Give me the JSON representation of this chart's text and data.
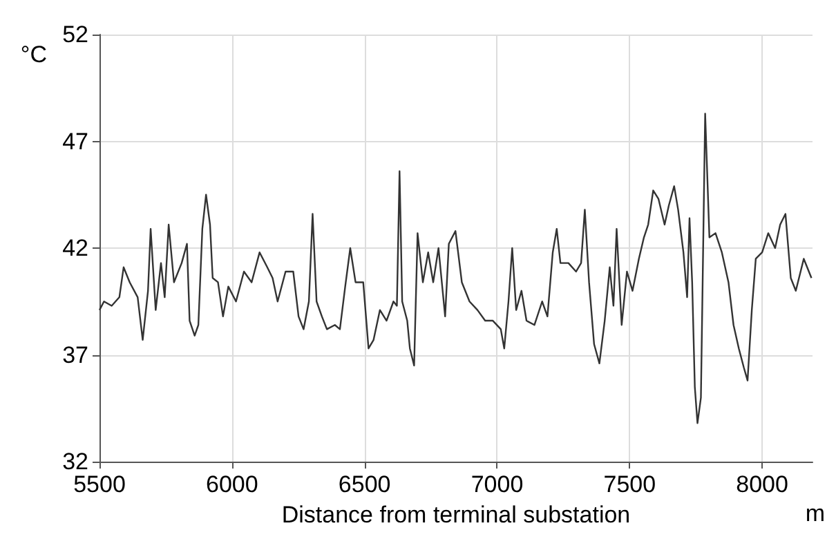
{
  "chart_data": {
    "type": "line",
    "xlabel": "Distance from terminal substation",
    "ylabel": "°C",
    "annotations": [
      "m"
    ],
    "xlim": [
      5500,
      8190
    ],
    "xticks": [
      5500,
      6000,
      6500,
      7000,
      7500,
      8000
    ],
    "ylim": [
      32,
      52
    ],
    "yticks": [
      32,
      37,
      42,
      47,
      52
    ],
    "grid": true,
    "x": [
      5500,
      5517,
      5546,
      5575,
      5591,
      5614,
      5644,
      5663,
      5683,
      5693,
      5712,
      5732,
      5746,
      5761,
      5781,
      5810,
      5830,
      5840,
      5859,
      5873,
      5888,
      5902,
      5917,
      5927,
      5947,
      5966,
      5986,
      6015,
      6045,
      6074,
      6104,
      6133,
      6153,
      6172,
      6202,
      6231,
      6251,
      6270,
      6290,
      6304,
      6319,
      6339,
      6358,
      6388,
      6407,
      6427,
      6446,
      6466,
      6495,
      6515,
      6534,
      6558,
      6583,
      6609,
      6622,
      6632,
      6642,
      6661,
      6671,
      6687,
      6700,
      6720,
      6740,
      6759,
      6779,
      6804,
      6818,
      6843,
      6867,
      6896,
      6926,
      6955,
      6984,
      7014,
      7027,
      7043,
      7057,
      7072,
      7092,
      7111,
      7141,
      7170,
      7190,
      7210,
      7225,
      7239,
      7269,
      7298,
      7317,
      7331,
      7347,
      7366,
      7386,
      7406,
      7425,
      7439,
      7451,
      7470,
      7490,
      7511,
      7535,
      7554,
      7570,
      7589,
      7609,
      7632,
      7648,
      7668,
      7683,
      7703,
      7717,
      7726,
      7736,
      7746,
      7756,
      7769,
      7785,
      7801,
      7824,
      7848,
      7873,
      7892,
      7912,
      7931,
      7945,
      7961,
      7976,
      8000,
      8023,
      8049,
      8068,
      8088,
      8108,
      8127,
      8157,
      8186
    ],
    "series": [
      {
        "color": "#333333",
        "values": [
          39.1,
          39.5,
          39.3,
          39.7,
          41.1,
          40.4,
          39.7,
          37.7,
          40.0,
          42.9,
          39.1,
          41.3,
          39.7,
          43.1,
          40.4,
          41.3,
          42.2,
          38.6,
          37.9,
          38.4,
          42.9,
          44.5,
          43.1,
          40.6,
          40.4,
          38.8,
          40.2,
          39.5,
          40.9,
          40.4,
          41.8,
          41.1,
          40.6,
          39.5,
          40.9,
          40.9,
          38.8,
          38.2,
          39.5,
          43.6,
          39.5,
          38.8,
          38.2,
          38.4,
          38.2,
          40.2,
          42.0,
          40.4,
          40.4,
          37.3,
          37.7,
          39.1,
          38.6,
          39.5,
          39.3,
          45.6,
          39.5,
          38.6,
          37.3,
          36.5,
          42.7,
          40.4,
          41.8,
          40.4,
          42.0,
          38.8,
          42.2,
          42.8,
          40.4,
          39.5,
          39.1,
          38.6,
          38.6,
          38.2,
          37.3,
          39.5,
          42.0,
          39.1,
          40.0,
          38.6,
          38.4,
          39.5,
          38.8,
          41.8,
          42.9,
          41.3,
          41.3,
          40.9,
          41.3,
          43.8,
          40.4,
          37.5,
          36.6,
          38.6,
          41.1,
          39.3,
          42.9,
          38.4,
          40.9,
          40.0,
          41.5,
          42.5,
          43.1,
          44.7,
          44.3,
          43.1,
          44.0,
          44.9,
          43.8,
          41.8,
          39.7,
          43.4,
          40.4,
          35.5,
          33.8,
          35.0,
          48.3,
          42.5,
          42.7,
          41.8,
          40.4,
          38.4,
          37.3,
          36.4,
          35.8,
          39.1,
          41.5,
          41.8,
          42.7,
          42.0,
          43.1,
          43.6,
          40.6,
          40.0,
          41.5,
          40.6
        ]
      }
    ]
  }
}
